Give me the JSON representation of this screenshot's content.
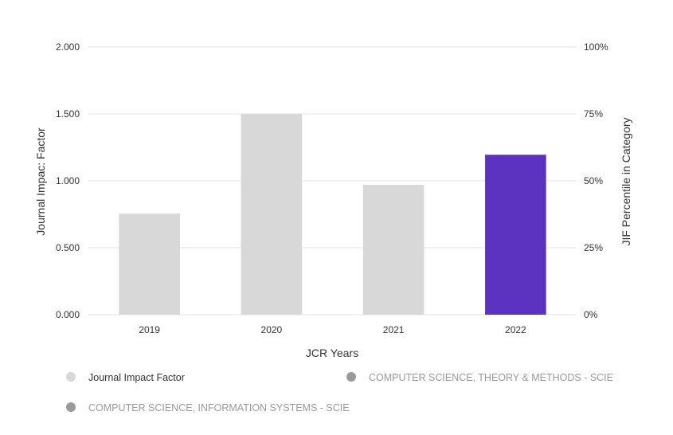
{
  "chart_data": {
    "type": "bar",
    "categories": [
      "2019",
      "2020",
      "2021",
      "2022"
    ],
    "values": [
      0.755,
      1.5,
      0.97,
      1.195
    ],
    "highlight_index": 3,
    "bar_color": "#d8d8d8",
    "highlight_color": "#5c33c0",
    "xlabel": "JCR Years",
    "ylabel": "Journal Impac: Factor",
    "y2label": "JIF Percentile in Category",
    "ylim": [
      0,
      2
    ],
    "y_ticks": [
      "0.000",
      "0.500",
      "1.000",
      "1.500",
      "2.000"
    ],
    "y_tick_values": [
      0,
      0.5,
      1,
      1.5,
      2
    ],
    "y2lim": [
      0,
      100
    ],
    "y2_ticks": [
      "0%",
      "25%",
      "50%",
      "75%",
      "100%"
    ],
    "grid": true,
    "legend_position": "bottom",
    "legend": [
      {
        "label": "Journal Impact Factor",
        "color": "#d8d8d8",
        "text_color": "#333333"
      },
      {
        "label": "COMPUTER SCIENCE, THEORY & METHODS - SCIE",
        "color": "#9a9a9a",
        "text_color": "#9a9a9a"
      },
      {
        "label": "COMPUTER SCIENCE, INFORMATION SYSTEMS - SCIE",
        "color": "#9a9a9a",
        "text_color": "#9a9a9a"
      }
    ]
  }
}
